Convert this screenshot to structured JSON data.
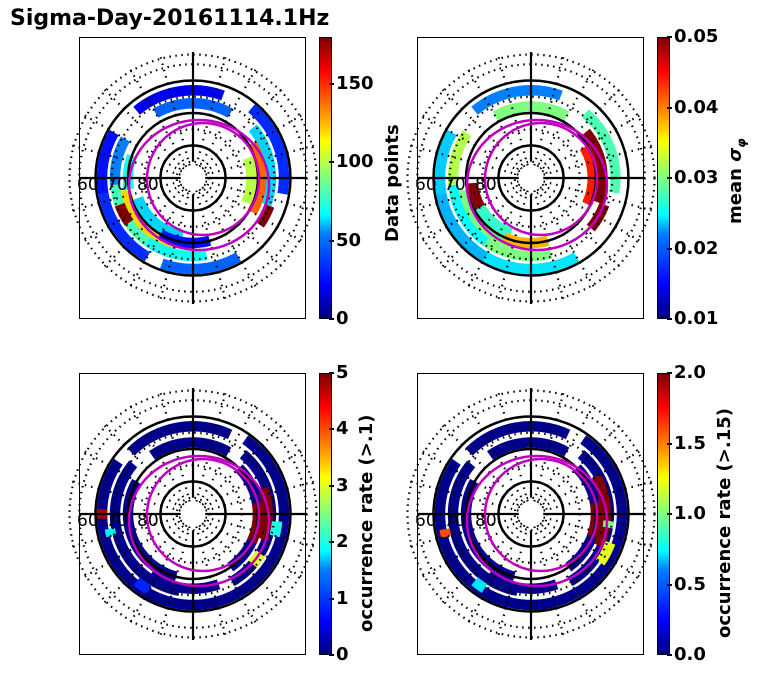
{
  "suptitle": "Sigma-Day-20161114.1Hz",
  "chart_data": [
    {
      "type": "heatmap",
      "projection": "polar (MLAT/MLT dial)",
      "title": "",
      "colorbar": {
        "label": "Data points",
        "min": 0,
        "max": 180,
        "ticks": [
          "0",
          "50",
          "100",
          "150"
        ],
        "tick_values": [
          0,
          50,
          100,
          150
        ],
        "colormap": "jet"
      },
      "lat_labels": [
        "60",
        "70",
        "80"
      ],
      "dominant_values": "ring of bins between 60-75 MLAT; mostly 20-80 counts, peaks ~150-180 on dusk side",
      "bins": [
        {
          "lat": 62,
          "mlt_from": -150,
          "mlt_to": -100,
          "v": 30
        },
        {
          "lat": 66,
          "mlt_from": -160,
          "mlt_to": -95,
          "v": 80
        },
        {
          "lat": 69,
          "mlt_from": -165,
          "mlt_to": -100,
          "v": 120
        },
        {
          "lat": 72,
          "mlt_from": -170,
          "mlt_to": -110,
          "v": 60
        },
        {
          "lat": 66,
          "mlt_from": -125,
          "mlt_to": -110,
          "v": 180
        },
        {
          "lat": 62,
          "mlt_from": -100,
          "mlt_to": -60,
          "v": 25
        },
        {
          "lat": 66,
          "mlt_from": -95,
          "mlt_to": -60,
          "v": 45
        },
        {
          "lat": 70,
          "mlt_from": -100,
          "mlt_to": -70,
          "v": 70
        },
        {
          "lat": 63,
          "mlt_from": -40,
          "mlt_to": 20,
          "v": 20
        },
        {
          "lat": 67,
          "mlt_from": -30,
          "mlt_to": 30,
          "v": 40
        },
        {
          "lat": 62,
          "mlt_from": 40,
          "mlt_to": 100,
          "v": 30
        },
        {
          "lat": 66,
          "mlt_from": 50,
          "mlt_to": 110,
          "v": 60
        },
        {
          "lat": 69,
          "mlt_from": 60,
          "mlt_to": 120,
          "v": 140
        },
        {
          "lat": 72,
          "mlt_from": 70,
          "mlt_to": 115,
          "v": 100
        },
        {
          "lat": 65,
          "mlt_from": 110,
          "mlt_to": 125,
          "v": 180
        },
        {
          "lat": 62,
          "mlt_from": 150,
          "mlt_to": 200,
          "v": 40
        },
        {
          "lat": 66,
          "mlt_from": 170,
          "mlt_to": 215,
          "v": 70
        },
        {
          "lat": 70,
          "mlt_from": 165,
          "mlt_to": 210,
          "v": 25
        }
      ]
    },
    {
      "type": "heatmap",
      "projection": "polar (MLAT/MLT dial)",
      "colorbar": {
        "label": "mean σφ",
        "min": 0.01,
        "max": 0.05,
        "ticks": [
          "0.01",
          "0.02",
          "0.03",
          "0.04",
          "0.05"
        ],
        "tick_values": [
          0.01,
          0.02,
          0.03,
          0.04,
          0.05
        ],
        "colormap": "jet"
      },
      "lat_labels": [
        "60",
        "70",
        "80"
      ],
      "dominant_values": "mostly 0.02-0.03; high values 0.045-0.05 on night side (bottom) near 65-70 MLAT",
      "bins": [
        {
          "lat": 62,
          "mlt_from": -160,
          "mlt_to": -100,
          "v": 0.022
        },
        {
          "lat": 66,
          "mlt_from": -165,
          "mlt_to": -95,
          "v": 0.025
        },
        {
          "lat": 69,
          "mlt_from": -165,
          "mlt_to": -100,
          "v": 0.03
        },
        {
          "lat": 72,
          "mlt_from": -160,
          "mlt_to": -110,
          "v": 0.027
        },
        {
          "lat": 62,
          "mlt_from": -100,
          "mlt_to": -60,
          "v": 0.023
        },
        {
          "lat": 66,
          "mlt_from": -95,
          "mlt_to": -55,
          "v": 0.032
        },
        {
          "lat": 63,
          "mlt_from": -40,
          "mlt_to": 20,
          "v": 0.02
        },
        {
          "lat": 68,
          "mlt_from": -30,
          "mlt_to": 30,
          "v": 0.03
        },
        {
          "lat": 64,
          "mlt_from": 40,
          "mlt_to": 100,
          "v": 0.028
        },
        {
          "lat": 68,
          "mlt_from": 50,
          "mlt_to": 110,
          "v": 0.05
        },
        {
          "lat": 71,
          "mlt_from": 60,
          "mlt_to": 115,
          "v": 0.044
        },
        {
          "lat": 66,
          "mlt_from": 110,
          "mlt_to": 130,
          "v": 0.05
        },
        {
          "lat": 62,
          "mlt_from": 150,
          "mlt_to": 210,
          "v": 0.024
        },
        {
          "lat": 66,
          "mlt_from": 165,
          "mlt_to": 215,
          "v": 0.03
        },
        {
          "lat": 70,
          "mlt_from": 165,
          "mlt_to": 205,
          "v": 0.038
        },
        {
          "lat": 72,
          "mlt_from": -120,
          "mlt_to": -95,
          "v": 0.05
        }
      ]
    },
    {
      "type": "heatmap",
      "projection": "polar (MLAT/MLT dial)",
      "colorbar": {
        "label": "occurrence rate (>.1)",
        "min": 0,
        "max": 5,
        "ticks": [
          "0",
          "1",
          "2",
          "3",
          "4",
          "5"
        ],
        "tick_values": [
          0,
          1,
          2,
          3,
          4,
          5
        ],
        "colormap": "jet"
      },
      "lat_labels": [
        "60",
        "70",
        "80"
      ],
      "dominant_values": "mostly ~0 (dark blue) ring; isolated high values (~5) on night side",
      "bins": [
        {
          "lat": 62,
          "mlt_from": -165,
          "mlt_to": -55,
          "v": 0.05
        },
        {
          "lat": 66,
          "mlt_from": -170,
          "mlt_to": -50,
          "v": 0.05
        },
        {
          "lat": 70,
          "mlt_from": -165,
          "mlt_to": -60,
          "v": 0.05
        },
        {
          "lat": 63,
          "mlt_from": -45,
          "mlt_to": 25,
          "v": 0.05
        },
        {
          "lat": 68,
          "mlt_from": -35,
          "mlt_to": 30,
          "v": 0.05
        },
        {
          "lat": 62,
          "mlt_from": 35,
          "mlt_to": 150,
          "v": 0.05
        },
        {
          "lat": 66,
          "mlt_from": 40,
          "mlt_to": 150,
          "v": 0.05
        },
        {
          "lat": 70,
          "mlt_from": 45,
          "mlt_to": 145,
          "v": 0.05
        },
        {
          "lat": 62,
          "mlt_from": 150,
          "mlt_to": 215,
          "v": 0.05
        },
        {
          "lat": 67,
          "mlt_from": 160,
          "mlt_to": 215,
          "v": 0.05
        },
        {
          "lat": 67,
          "mlt_from": 70,
          "mlt_to": 110,
          "v": 5
        },
        {
          "lat": 70,
          "mlt_from": 80,
          "mlt_to": 115,
          "v": 5
        },
        {
          "lat": 66,
          "mlt_from": 120,
          "mlt_to": 130,
          "v": 3
        },
        {
          "lat": 64,
          "mlt_from": 95,
          "mlt_to": 105,
          "v": 2
        },
        {
          "lat": 63,
          "mlt_from": -150,
          "mlt_to": -140,
          "v": 0.8
        },
        {
          "lat": 64,
          "mlt_from": -105,
          "mlt_to": -100,
          "v": 1.8
        },
        {
          "lat": 62,
          "mlt_from": -93,
          "mlt_to": -87,
          "v": 4.8
        }
      ]
    },
    {
      "type": "heatmap",
      "projection": "polar (MLAT/MLT dial)",
      "colorbar": {
        "label": "occurrence rate (>.15)",
        "min": 0,
        "max": 2,
        "ticks": [
          "0.0",
          "0.5",
          "1.0",
          "1.5",
          "2.0"
        ],
        "tick_values": [
          0,
          0.5,
          1.0,
          1.5,
          2.0
        ],
        "colormap": "jet"
      },
      "lat_labels": [
        "60",
        "70",
        "80"
      ],
      "dominant_values": "mostly ~0 (dark blue) ring; high values (~2) on night side",
      "bins": [
        {
          "lat": 62,
          "mlt_from": -165,
          "mlt_to": -55,
          "v": 0.02
        },
        {
          "lat": 66,
          "mlt_from": -170,
          "mlt_to": -50,
          "v": 0.02
        },
        {
          "lat": 70,
          "mlt_from": -165,
          "mlt_to": -60,
          "v": 0.02
        },
        {
          "lat": 63,
          "mlt_from": -45,
          "mlt_to": 25,
          "v": 0.02
        },
        {
          "lat": 68,
          "mlt_from": -35,
          "mlt_to": 30,
          "v": 0.02
        },
        {
          "lat": 62,
          "mlt_from": 35,
          "mlt_to": 150,
          "v": 0.02
        },
        {
          "lat": 66,
          "mlt_from": 40,
          "mlt_to": 150,
          "v": 0.02
        },
        {
          "lat": 70,
          "mlt_from": 45,
          "mlt_to": 145,
          "v": 0.02
        },
        {
          "lat": 62,
          "mlt_from": 150,
          "mlt_to": 215,
          "v": 0.02
        },
        {
          "lat": 67,
          "mlt_from": 160,
          "mlt_to": 215,
          "v": 0.02
        },
        {
          "lat": 67,
          "mlt_from": 60,
          "mlt_to": 115,
          "v": 2
        },
        {
          "lat": 70,
          "mlt_from": 80,
          "mlt_to": 110,
          "v": 2
        },
        {
          "lat": 64,
          "mlt_from": 110,
          "mlt_to": 125,
          "v": 1.2
        },
        {
          "lat": 66,
          "mlt_from": 95,
          "mlt_to": 100,
          "v": 1.0
        },
        {
          "lat": 63,
          "mlt_from": -148,
          "mlt_to": -140,
          "v": 0.7
        },
        {
          "lat": 63,
          "mlt_from": -105,
          "mlt_to": -100,
          "v": 1.6
        }
      ]
    }
  ]
}
